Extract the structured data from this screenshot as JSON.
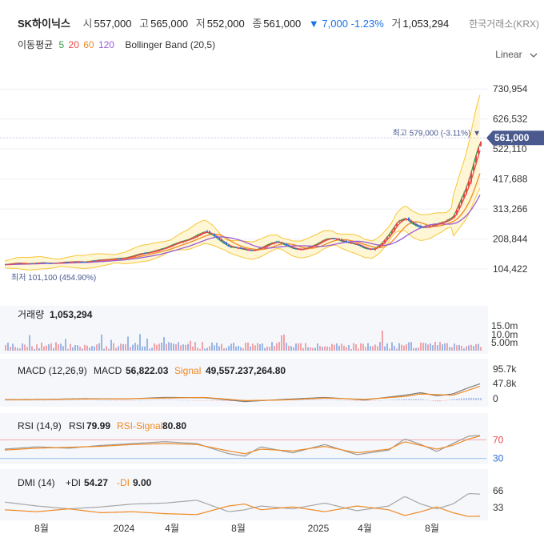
{
  "header": {
    "name": "SK하이닉스",
    "open_label": "시",
    "open": "557,000",
    "high_label": "고",
    "high": "565,000",
    "low_label": "저",
    "low": "552,000",
    "close_label": "종",
    "close": "561,000",
    "change_arrow": "▼",
    "change": "7,000",
    "change_pct": "-1.23%",
    "volume_label": "거",
    "volume": "1,053,294",
    "exchange": "한국거래소(KRX)"
  },
  "indicators": {
    "ma_label": "이동평균",
    "ma_periods": [
      "5",
      "20",
      "60",
      "120"
    ],
    "ma_colors": [
      "#2e9e48",
      "#e8474a",
      "#f08a24",
      "#9b5bd6"
    ],
    "bb_label": "Bollinger Band (20,5)",
    "scale_label": "Linear",
    "scale_icon": "chevron-down-icon"
  },
  "colors": {
    "up": "#e8474a",
    "down": "#2b6fd6",
    "bb": "#f6c638",
    "accent": "#4a5a8f"
  },
  "chart_data": [
    {
      "type": "line",
      "name": "price",
      "x_ticks": [
        "8월",
        "2024",
        "4월",
        "8월",
        "2025",
        "4월",
        "8월"
      ],
      "y_ticks": [
        "730,954",
        "626,532",
        "522,110",
        "417,688",
        "313,266",
        "208,844",
        "104,422"
      ],
      "ylim": [
        60000,
        790000
      ],
      "current_label": "561,000",
      "high_label": "최고 579,000 (-3.11%) ▼",
      "low_label": "최저 101,100 (454.90%)",
      "x": [
        0,
        15,
        30,
        45,
        60,
        75,
        90,
        100,
        110,
        120,
        130,
        140,
        150,
        160,
        170,
        180,
        190,
        200,
        210,
        220,
        230,
        240,
        250,
        260,
        270,
        280,
        290,
        300,
        310,
        320,
        330,
        340,
        350,
        360,
        370,
        380,
        390,
        400,
        410,
        420,
        430,
        440,
        450,
        460,
        470,
        480,
        490,
        500,
        510,
        520,
        530,
        540,
        550,
        560,
        570,
        575,
        580,
        585,
        590,
        595,
        600
      ],
      "close": [
        120000,
        125000,
        123000,
        126000,
        124000,
        128000,
        130000,
        129000,
        133000,
        136000,
        138000,
        141000,
        143000,
        150000,
        158000,
        162000,
        170000,
        178000,
        190000,
        200000,
        208000,
        223000,
        235000,
        222000,
        200000,
        182000,
        178000,
        172000,
        168000,
        178000,
        192000,
        200000,
        188000,
        176000,
        172000,
        180000,
        192000,
        208000,
        212000,
        202000,
        196000,
        190000,
        176000,
        172000,
        192000,
        226000,
        268000,
        282000,
        260000,
        248000,
        252000,
        262000,
        270000,
        286000,
        350000,
        380000,
        420000,
        470000,
        520000,
        555000,
        561000
      ]
    },
    {
      "type": "bar",
      "name": "volume",
      "title": "거래량",
      "value": "1,053,294",
      "y_ticks": [
        "15.0m",
        "10.0m",
        "5.00m"
      ]
    },
    {
      "type": "line",
      "name": "MACD",
      "title": "MACD (12,26,9)",
      "macd_label": "MACD",
      "macd_value": "56,822.03",
      "signal_label": "Signal",
      "signal_value": "49,557.237,264.80",
      "y_ticks": [
        "95.7k",
        "47.8k",
        "0"
      ],
      "ylim": [
        0,
        95700
      ],
      "x": [
        0,
        50,
        100,
        150,
        200,
        250,
        300,
        350,
        400,
        450,
        500,
        520,
        540,
        560,
        580,
        600
      ],
      "macd": [
        2000,
        3000,
        5000,
        4000,
        9000,
        8000,
        -4000,
        3000,
        9000,
        1000,
        16000,
        24000,
        14000,
        20000,
        40000,
        56822
      ],
      "signal": [
        1500,
        2500,
        4000,
        4500,
        7000,
        9000,
        -1000,
        1000,
        7000,
        3000,
        12000,
        20000,
        18000,
        16000,
        32000,
        49557
      ]
    },
    {
      "type": "line",
      "name": "RSI",
      "title": "RSI (14,9)",
      "rsi_label": "RSI",
      "rsi_value": "79.99",
      "signal_label": "RSI-Signal",
      "signal_value": "80.80",
      "y_ticks": [
        "70",
        "30"
      ],
      "ylim": [
        0,
        100
      ],
      "x": [
        0,
        40,
        80,
        120,
        160,
        200,
        240,
        280,
        300,
        320,
        360,
        400,
        440,
        480,
        500,
        520,
        540,
        560,
        580,
        600
      ],
      "rsi": [
        50,
        55,
        52,
        58,
        62,
        66,
        62,
        40,
        35,
        55,
        42,
        60,
        38,
        48,
        72,
        60,
        45,
        62,
        78,
        80
      ],
      "signal": [
        48,
        52,
        54,
        56,
        60,
        62,
        60,
        46,
        40,
        50,
        46,
        56,
        42,
        50,
        66,
        58,
        50,
        58,
        72,
        81
      ]
    },
    {
      "type": "line",
      "name": "DMI",
      "title": "DMI (14)",
      "pdi_label": "+DI",
      "pdi_value": "54.27",
      "mdi_label": "-DI",
      "mdi_value": "9.00",
      "y_ticks": [
        "66",
        "33"
      ],
      "ylim": [
        0,
        80
      ],
      "x": [
        0,
        40,
        80,
        120,
        160,
        200,
        240,
        280,
        300,
        320,
        360,
        400,
        440,
        480,
        500,
        520,
        540,
        560,
        580,
        600
      ],
      "pdi": [
        38,
        30,
        24,
        28,
        34,
        36,
        42,
        18,
        22,
        30,
        24,
        36,
        20,
        30,
        50,
        34,
        24,
        34,
        56,
        54
      ],
      "mdi": [
        22,
        18,
        24,
        16,
        18,
        14,
        12,
        30,
        34,
        22,
        28,
        18,
        30,
        22,
        10,
        18,
        28,
        16,
        8,
        9
      ]
    }
  ]
}
